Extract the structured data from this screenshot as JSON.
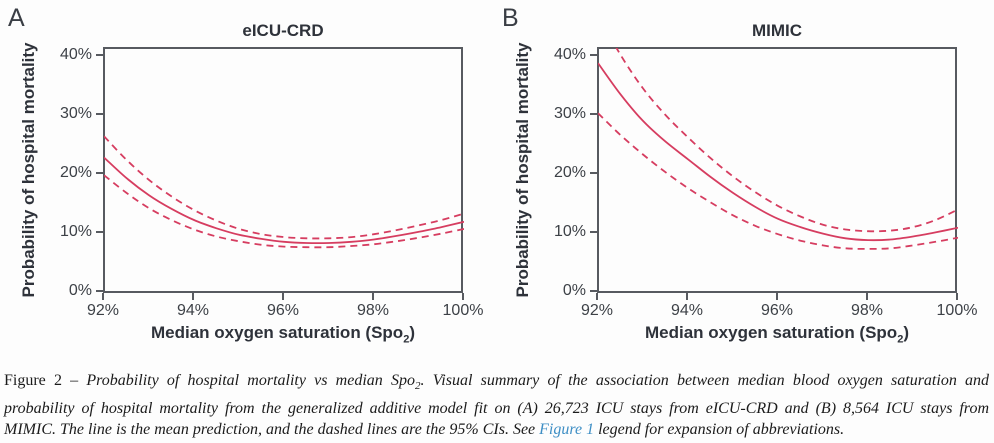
{
  "colors": {
    "curve": "#d63d60",
    "axis": "#575a60",
    "title_text": "#2e323a",
    "tick_text": "#3d4147",
    "caption_text": "#1b1b1b",
    "link": "#3f8fc5"
  },
  "panels": [
    {
      "label": "A",
      "title": "eICU-CRD"
    },
    {
      "label": "B",
      "title": "MIMIC"
    }
  ],
  "axes": {
    "y_label": "Probability of hospital mortality",
    "x_label_pre": "Median oxygen saturation (Spo",
    "x_label_sub": "2",
    "x_label_post": ")",
    "y_ticks": [
      "40%",
      "30%",
      "20%",
      "10%",
      "0%"
    ],
    "x_ticks": [
      "92%",
      "94%",
      "96%",
      "98%",
      "100%"
    ]
  },
  "chart_data": [
    {
      "type": "line",
      "title": "eICU-CRD",
      "xlabel": "Median oxygen saturation (SpO2)",
      "ylabel": "Probability of hospital mortality",
      "xlim": [
        92,
        100
      ],
      "ylim": [
        0,
        40
      ],
      "x_tick_values": [
        92,
        94,
        96,
        98,
        100
      ],
      "y_tick_values": [
        0,
        10,
        20,
        30,
        40
      ],
      "grid": false,
      "legend": "none",
      "x": [
        92,
        92.5,
        93,
        93.5,
        94,
        94.5,
        95,
        95.5,
        96,
        96.5,
        97,
        97.5,
        98,
        98.5,
        99,
        99.5,
        100
      ],
      "series": [
        {
          "name": "mean prediction",
          "style": "solid",
          "values": [
            22.8,
            19.3,
            16.4,
            14.1,
            12.2,
            10.8,
            9.7,
            9.0,
            8.5,
            8.3,
            8.3,
            8.5,
            8.9,
            9.5,
            10.2,
            11.0,
            11.9
          ]
        },
        {
          "name": "upper 95% CI",
          "style": "dashed",
          "values": [
            26.4,
            22.4,
            19.0,
            16.2,
            13.9,
            12.1,
            10.7,
            9.8,
            9.3,
            9.1,
            9.1,
            9.3,
            9.8,
            10.5,
            11.3,
            12.2,
            13.3
          ]
        },
        {
          "name": "lower 95% CI",
          "style": "dashed",
          "values": [
            19.8,
            16.8,
            14.2,
            12.2,
            10.6,
            9.4,
            8.6,
            8.0,
            7.7,
            7.6,
            7.6,
            7.8,
            8.1,
            8.6,
            9.2,
            9.9,
            10.7
          ]
        }
      ]
    },
    {
      "type": "line",
      "title": "MIMIC",
      "xlabel": "Median oxygen saturation (SpO2)",
      "ylabel": "Probability of hospital mortality",
      "xlim": [
        92,
        100
      ],
      "ylim": [
        0,
        40
      ],
      "x_tick_values": [
        92,
        94,
        96,
        98,
        100
      ],
      "y_tick_values": [
        0,
        10,
        20,
        30,
        40
      ],
      "grid": false,
      "legend": "none",
      "x": [
        92,
        92.5,
        93,
        93.5,
        94,
        94.5,
        95,
        95.5,
        96,
        96.5,
        97,
        97.5,
        98,
        98.5,
        99,
        99.5,
        100
      ],
      "series": [
        {
          "name": "mean prediction",
          "style": "solid",
          "values": [
            38.8,
            33.5,
            29.0,
            25.5,
            22.5,
            19.5,
            16.8,
            14.4,
            12.4,
            11.0,
            9.9,
            9.1,
            8.8,
            8.9,
            9.4,
            10.1,
            10.9
          ]
        },
        {
          "name": "upper 95% CI",
          "style": "dashed",
          "values": [
            47.0,
            40.2,
            34.5,
            30.0,
            26.2,
            22.7,
            19.6,
            16.9,
            14.6,
            12.8,
            11.4,
            10.6,
            10.3,
            10.4,
            11.0,
            12.2,
            14.0
          ]
        },
        {
          "name": "lower 95% CI",
          "style": "dashed",
          "values": [
            30.3,
            26.6,
            23.3,
            20.3,
            17.6,
            15.2,
            13.0,
            11.2,
            9.8,
            8.7,
            7.9,
            7.4,
            7.3,
            7.4,
            7.9,
            8.5,
            9.2
          ]
        }
      ]
    }
  ],
  "caption": {
    "label": "Figure 2 – ",
    "title_pre": "Probability of hospital mortality vs median Spo",
    "title_sub": "2",
    "line1_rest": ". Visual summary of the association between median blood oxygen saturation and",
    "line2": "probability of hospital mortality from the generalized additive model fit on (A) 26,723 ICU stays from eICU-CRD and (B) 8,564 ICU stays from",
    "line3_pre": "MIMIC. The line is the mean prediction, and the dashed lines are the 95% CIs. See ",
    "link": "Figure 1",
    "line3_post": " legend for expansion of abbreviations."
  }
}
